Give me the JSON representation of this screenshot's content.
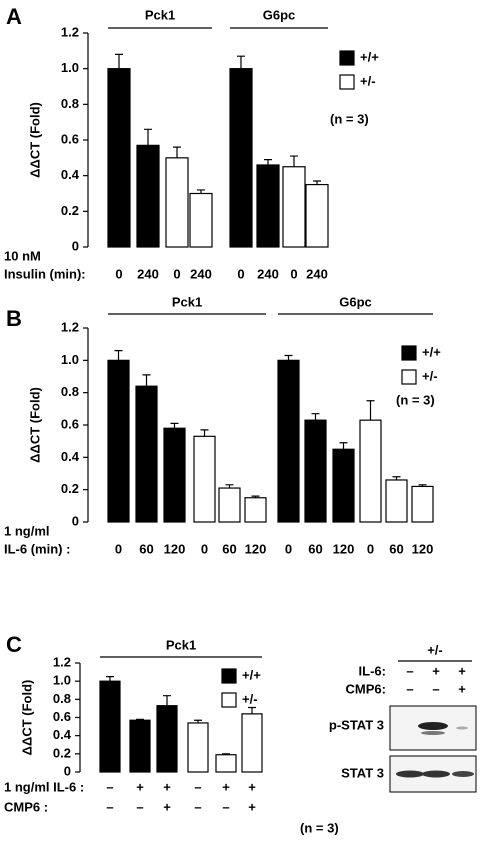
{
  "chart_data": [
    {
      "type": "bar",
      "panel": "A",
      "groups": [
        "Pck1",
        "G6pc"
      ],
      "categories": [
        "0",
        "240",
        "0",
        "240",
        "0",
        "240",
        "0",
        "240"
      ],
      "label_lines": [
        "10 nM",
        "Insulin (min):"
      ],
      "ylabel": "ΔΔCT (Fold)",
      "ylim": [
        0,
        1.2
      ],
      "yticks": [
        0,
        0.2,
        0.4,
        0.6,
        0.8,
        {
          "value": 1,
          "label": "1.0"
        },
        1.2
      ],
      "note": "(n = 3)",
      "series": [
        {
          "name": "+/+",
          "color": "#000000",
          "values": [
            1.0,
            0.57,
            null,
            null,
            1.0,
            0.46,
            null,
            null
          ],
          "errors": [
            0.08,
            0.09,
            null,
            null,
            0.07,
            0.03,
            null,
            null
          ]
        },
        {
          "name": "+/-",
          "color": "#ffffff",
          "values": [
            null,
            null,
            0.5,
            0.3,
            null,
            null,
            0.45,
            0.35
          ],
          "errors": [
            null,
            null,
            0.06,
            0.02,
            null,
            null,
            0.06,
            0.02
          ]
        }
      ]
    },
    {
      "type": "bar",
      "panel": "B",
      "groups": [
        "Pck1",
        "G6pc"
      ],
      "categories": [
        "0",
        "60",
        "120",
        "0",
        "60",
        "120",
        "0",
        "60",
        "120",
        "0",
        "60",
        "120"
      ],
      "label_lines": [
        "1 ng/ml",
        "IL-6 (min) :"
      ],
      "ylabel": "ΔΔCT (Fold)",
      "ylim": [
        0,
        1.2
      ],
      "yticks": [
        0,
        0.2,
        0.4,
        0.6,
        0.8,
        {
          "value": 1,
          "label": "1.0"
        },
        1.2
      ],
      "note": "(n = 3)",
      "series": [
        {
          "name": "+/+",
          "color": "#000000",
          "values": [
            1.0,
            0.84,
            0.58,
            null,
            null,
            null,
            1.0,
            0.63,
            0.45,
            null,
            null,
            null
          ],
          "errors": [
            0.06,
            0.07,
            0.03,
            null,
            null,
            null,
            0.03,
            0.04,
            0.04,
            null,
            null,
            null
          ]
        },
        {
          "name": "+/-",
          "color": "#ffffff",
          "values": [
            null,
            null,
            null,
            0.53,
            0.21,
            0.15,
            null,
            null,
            null,
            0.63,
            0.26,
            0.22
          ],
          "errors": [
            null,
            null,
            null,
            0.04,
            0.02,
            0.01,
            null,
            null,
            null,
            0.12,
            0.02,
            0.01
          ]
        }
      ]
    },
    {
      "type": "bar",
      "panel": "C",
      "groups": [
        "Pck1"
      ],
      "treatment_rows": [
        {
          "label": "1 ng/ml IL-6 :",
          "values": [
            "–",
            "+",
            "+",
            "–",
            "+",
            "+"
          ]
        },
        {
          "label": "CMP6 :",
          "values": [
            "–",
            "–",
            "+",
            "–",
            "–",
            "+"
          ]
        }
      ],
      "ylabel": "ΔΔCT (Fold)",
      "ylim": [
        0,
        1.2
      ],
      "yticks": [
        0,
        0.2,
        0.4,
        0.6,
        0.8,
        {
          "value": 1,
          "label": "1.0"
        },
        1.2
      ],
      "note": "(n = 3)",
      "series": [
        {
          "name": "+/+",
          "color": "#000000",
          "values": [
            1.0,
            0.57,
            0.73,
            null,
            null,
            null
          ],
          "errors": [
            0.05,
            0.01,
            0.11,
            null,
            null,
            null
          ]
        },
        {
          "name": "+/-",
          "color": "#ffffff",
          "values": [
            null,
            null,
            null,
            0.54,
            0.19,
            0.64
          ],
          "errors": [
            null,
            null,
            null,
            0.03,
            0.01,
            0.07
          ]
        }
      ]
    }
  ],
  "blot": {
    "genotype": "+/-",
    "rows": [
      {
        "label": "IL-6:",
        "values": [
          "–",
          "+",
          "+"
        ]
      },
      {
        "label": "CMP6:",
        "values": [
          "–",
          "–",
          "+"
        ]
      }
    ],
    "bands": [
      "p-STAT 3",
      "STAT 3"
    ]
  }
}
